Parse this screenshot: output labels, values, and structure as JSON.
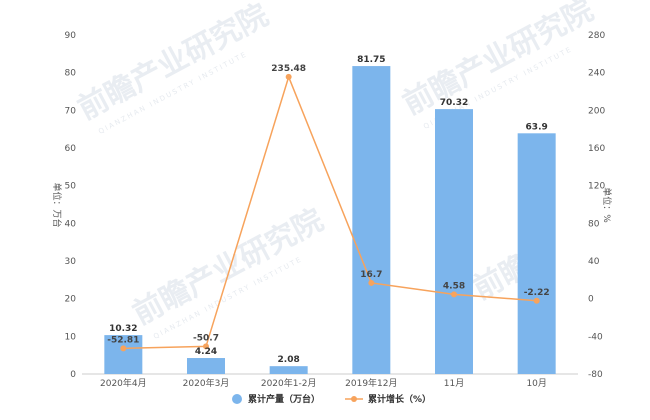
{
  "chart_data": {
    "type": "bar+line",
    "categories": [
      "2020年4月",
      "2020年3月",
      "2020年1-2月",
      "2019年12月",
      "11月",
      "10月"
    ],
    "series": [
      {
        "name": "累计产量（万台）",
        "type": "bar",
        "axis": "left",
        "values": [
          10.32,
          4.24,
          2.08,
          81.75,
          70.32,
          63.9
        ]
      },
      {
        "name": "累计增长（%）",
        "type": "line",
        "axis": "right",
        "values": [
          -52.81,
          -50.7,
          235.48,
          16.7,
          4.58,
          -2.22
        ]
      }
    ],
    "y_left": {
      "label": "单位：万台",
      "ylim": [
        0,
        90
      ],
      "ticks": [
        0,
        10,
        20,
        30,
        40,
        50,
        60,
        70,
        80,
        90
      ]
    },
    "y_right": {
      "label": "单位：%",
      "ylim": [
        -80,
        280
      ],
      "ticks": [
        -80,
        -40,
        0,
        40,
        80,
        120,
        160,
        200,
        240,
        280
      ]
    },
    "legend_position": "bottom",
    "grid": false,
    "colors": {
      "bar": "#7cb5ec",
      "line": "#f7a35c"
    },
    "labels": {
      "bars": [
        "10.32",
        "4.24",
        "2.08",
        "81.75",
        "70.32",
        "63.9"
      ],
      "line": [
        "-52.81",
        "-50.7",
        "235.48",
        "16.7",
        "4.58",
        "-2.22"
      ]
    }
  }
}
